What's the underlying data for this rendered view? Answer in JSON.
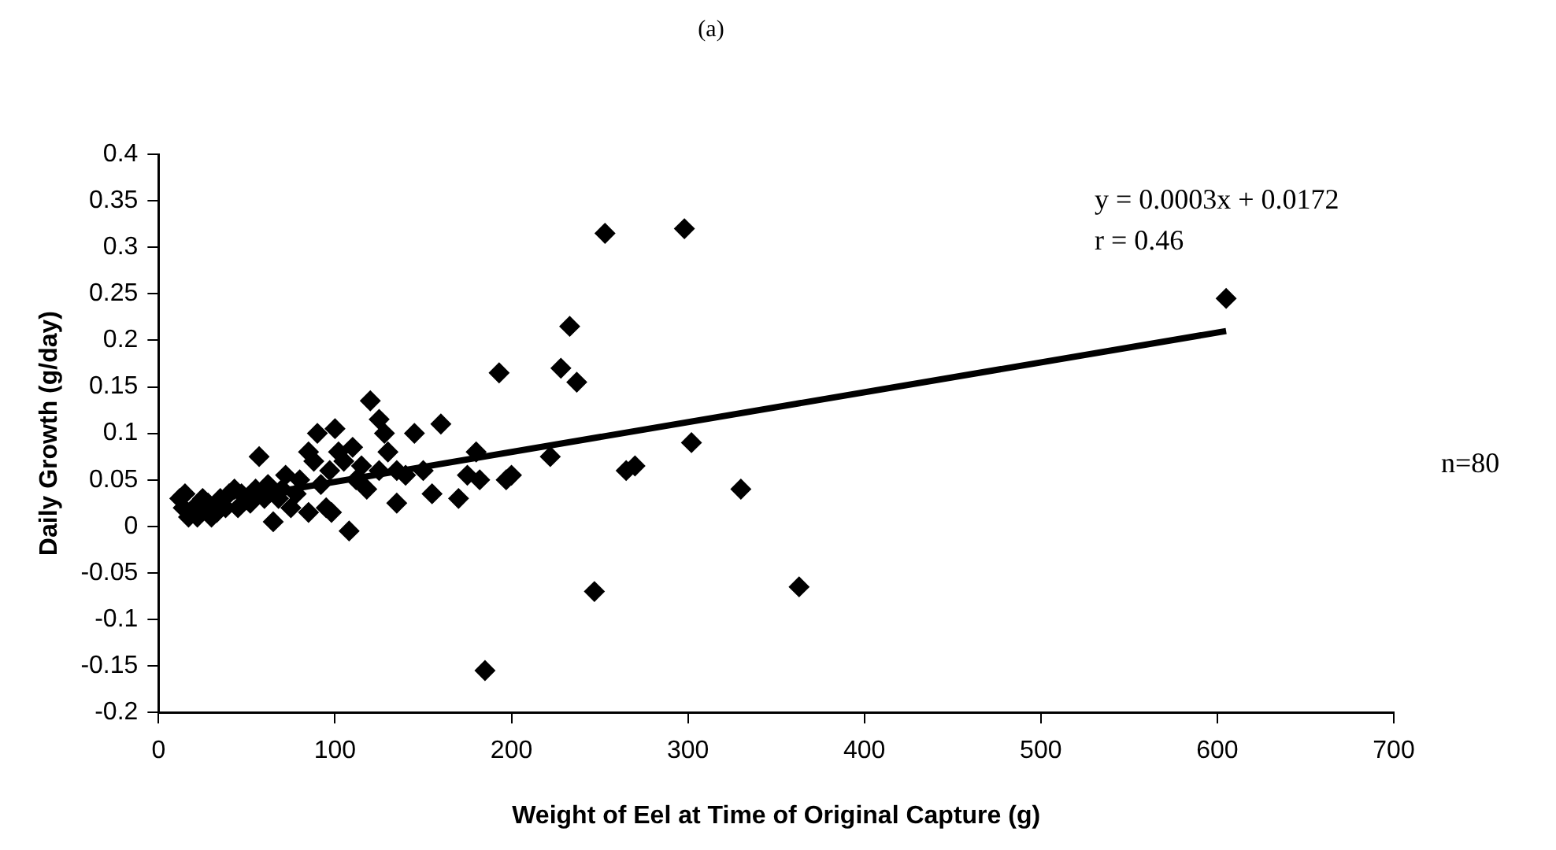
{
  "chart_data": {
    "type": "scatter",
    "title": "(a)",
    "xlabel": "Weight of Eel at Time of Original Capture (g)",
    "ylabel": "Daily Growth (g/day)",
    "annotations": [
      "y = 0.0003x + 0.0172",
      "r = 0.46",
      "n=80"
    ],
    "xlim": [
      0,
      700
    ],
    "xticks": [
      0,
      100,
      200,
      300,
      400,
      500,
      600,
      700
    ],
    "ylim": [
      -0.2,
      0.4
    ],
    "yticks": [
      -0.2,
      -0.15,
      -0.1,
      -0.05,
      0,
      0.05,
      0.1,
      0.15,
      0.2,
      0.25,
      0.3,
      0.35,
      0.4
    ],
    "grid": false,
    "legend": false,
    "series": [
      {
        "marker": "diamond",
        "color": "#000000",
        "x": [
          605,
          298,
          253,
          233,
          228,
          237,
          193,
          222,
          200,
          197,
          247,
          185,
          363,
          330,
          302,
          270,
          265,
          180,
          175,
          182,
          160,
          155,
          145,
          140,
          135,
          120,
          125,
          128,
          130,
          125,
          118,
          115,
          108,
          105,
          100,
          102,
          97,
          95,
          98,
          90,
          88,
          85,
          80,
          75,
          72,
          70,
          65,
          60,
          57,
          55,
          45,
          43,
          40,
          38,
          35,
          30,
          28,
          25,
          22,
          20,
          15,
          12,
          14,
          170,
          150,
          112,
          135,
          85,
          52,
          33,
          47,
          62,
          68,
          78,
          92,
          110,
          24,
          17
        ],
        "values": [
          0.245,
          0.32,
          0.315,
          0.215,
          0.17,
          0.155,
          0.165,
          0.075,
          0.055,
          0.05,
          -0.07,
          -0.155,
          -0.065,
          0.04,
          0.09,
          0.065,
          0.06,
          0.08,
          0.055,
          0.05,
          0.11,
          0.035,
          0.1,
          0.055,
          0.025,
          0.135,
          0.115,
          0.1,
          0.08,
          0.06,
          0.04,
          0.065,
          -0.005,
          0.07,
          0.105,
          0.08,
          0.06,
          0.02,
          0.015,
          0.1,
          0.07,
          0.08,
          0.05,
          0.02,
          0.055,
          0.04,
          0.005,
          0.03,
          0.075,
          0.04,
          0.02,
          0.04,
          0.035,
          0.02,
          0.03,
          0.01,
          0.025,
          0.03,
          0.01,
          0.02,
          0.035,
          0.03,
          0.02,
          0.03,
          0.06,
          0.05,
          0.06,
          0.015,
          0.025,
          0.015,
          0.035,
          0.045,
          0.03,
          0.035,
          0.045,
          0.085,
          0.02,
          0.01
        ]
      },
      {
        "type": "line",
        "color": "#000000",
        "x": [
          60,
          605
        ],
        "values": [
          0.035,
          0.21
        ]
      }
    ]
  }
}
